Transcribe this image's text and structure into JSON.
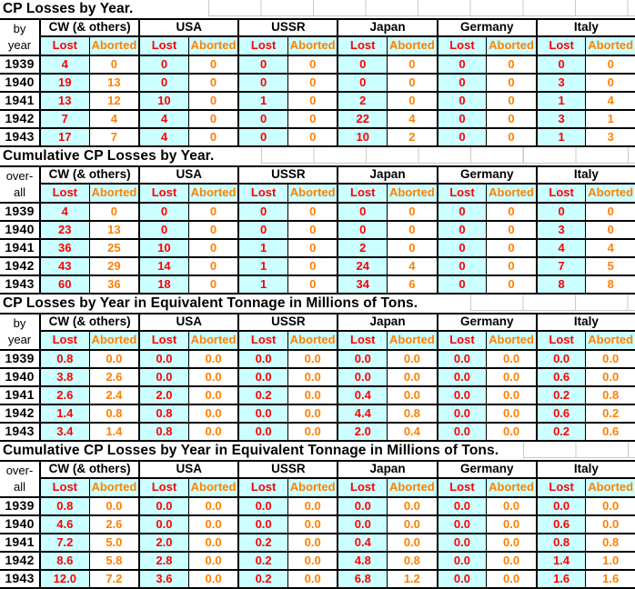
{
  "colors": {
    "lost_text": "#ff0000",
    "aborted_text": "#ff8000",
    "lost_cell_bg": "#ccffff",
    "subheader_bg": "#ccffff",
    "table_border": "#000000",
    "gridline_gray": "#c9c9c9",
    "background": "#ffffff"
  },
  "columns": {
    "countries": [
      "CW (& others)",
      "USA",
      "USSR",
      "Japan",
      "Germany",
      "Italy"
    ],
    "sub": {
      "lost": "Lost",
      "aborted": "Aborted"
    }
  },
  "tables": [
    {
      "title": "CP Losses by Year.",
      "corner": [
        "by",
        "year"
      ],
      "years": [
        "1939",
        "1940",
        "1941",
        "1942",
        "1943"
      ],
      "rows": [
        [
          "4",
          "0",
          "0",
          "0",
          "0",
          "0",
          "0",
          "0",
          "0",
          "0",
          "0",
          "0"
        ],
        [
          "19",
          "13",
          "0",
          "0",
          "0",
          "0",
          "0",
          "0",
          "0",
          "0",
          "3",
          "0"
        ],
        [
          "13",
          "12",
          "10",
          "0",
          "1",
          "0",
          "2",
          "0",
          "0",
          "0",
          "1",
          "4"
        ],
        [
          "7",
          "4",
          "4",
          "0",
          "0",
          "0",
          "22",
          "4",
          "0",
          "0",
          "3",
          "1"
        ],
        [
          "17",
          "7",
          "4",
          "0",
          "0",
          "0",
          "10",
          "2",
          "0",
          "0",
          "1",
          "3"
        ]
      ]
    },
    {
      "title": "Cumulative CP Losses by Year.",
      "corner": [
        "over-",
        "all"
      ],
      "years": [
        "1939",
        "1940",
        "1941",
        "1942",
        "1943"
      ],
      "rows": [
        [
          "4",
          "0",
          "0",
          "0",
          "0",
          "0",
          "0",
          "0",
          "0",
          "0",
          "0",
          "0"
        ],
        [
          "23",
          "13",
          "0",
          "0",
          "0",
          "0",
          "0",
          "0",
          "0",
          "0",
          "3",
          "0"
        ],
        [
          "36",
          "25",
          "10",
          "0",
          "1",
          "0",
          "2",
          "0",
          "0",
          "0",
          "4",
          "4"
        ],
        [
          "43",
          "29",
          "14",
          "0",
          "1",
          "0",
          "24",
          "4",
          "0",
          "0",
          "7",
          "5"
        ],
        [
          "60",
          "36",
          "18",
          "0",
          "1",
          "0",
          "34",
          "6",
          "0",
          "0",
          "8",
          "8"
        ]
      ]
    },
    {
      "title": "CP Losses by Year in Equivalent Tonnage in Millions of Tons.",
      "corner": [
        "by",
        "year"
      ],
      "years": [
        "1939",
        "1940",
        "1941",
        "1942",
        "1943"
      ],
      "rows": [
        [
          "0.8",
          "0.0",
          "0.0",
          "0.0",
          "0.0",
          "0.0",
          "0.0",
          "0.0",
          "0.0",
          "0.0",
          "0.0",
          "0.0"
        ],
        [
          "3.8",
          "2.6",
          "0.0",
          "0.0",
          "0.0",
          "0.0",
          "0.0",
          "0.0",
          "0.0",
          "0.0",
          "0.6",
          "0.0"
        ],
        [
          "2.6",
          "2.4",
          "2.0",
          "0.0",
          "0.2",
          "0.0",
          "0.4",
          "0.0",
          "0.0",
          "0.0",
          "0.2",
          "0.8"
        ],
        [
          "1.4",
          "0.8",
          "0.8",
          "0.0",
          "0.0",
          "0.0",
          "4.4",
          "0.8",
          "0.0",
          "0.0",
          "0.6",
          "0.2"
        ],
        [
          "3.4",
          "1.4",
          "0.8",
          "0.0",
          "0.0",
          "0.0",
          "2.0",
          "0.4",
          "0.0",
          "0.0",
          "0.2",
          "0.6"
        ]
      ]
    },
    {
      "title": "Cumulative CP Losses by Year in Equivalent Tonnage in Millions of Tons.",
      "corner": [
        "over-",
        "all"
      ],
      "years": [
        "1939",
        "1940",
        "1941",
        "1942",
        "1943"
      ],
      "rows": [
        [
          "0.8",
          "0.0",
          "0.0",
          "0.0",
          "0.0",
          "0.0",
          "0.0",
          "0.0",
          "0.0",
          "0.0",
          "0.0",
          "0.0"
        ],
        [
          "4.6",
          "2.6",
          "0.0",
          "0.0",
          "0.0",
          "0.0",
          "0.0",
          "0.0",
          "0.0",
          "0.0",
          "0.6",
          "0.0"
        ],
        [
          "7.2",
          "5.0",
          "2.0",
          "0.0",
          "0.2",
          "0.0",
          "0.4",
          "0.0",
          "0.0",
          "0.0",
          "0.8",
          "0.8"
        ],
        [
          "8.6",
          "5.8",
          "2.8",
          "0.0",
          "0.2",
          "0.0",
          "4.8",
          "0.8",
          "0.0",
          "0.0",
          "1.4",
          "1.0"
        ],
        [
          "12.0",
          "7.2",
          "3.6",
          "0.0",
          "0.2",
          "0.0",
          "6.8",
          "1.2",
          "0.0",
          "0.0",
          "1.6",
          "1.6"
        ]
      ]
    }
  ]
}
